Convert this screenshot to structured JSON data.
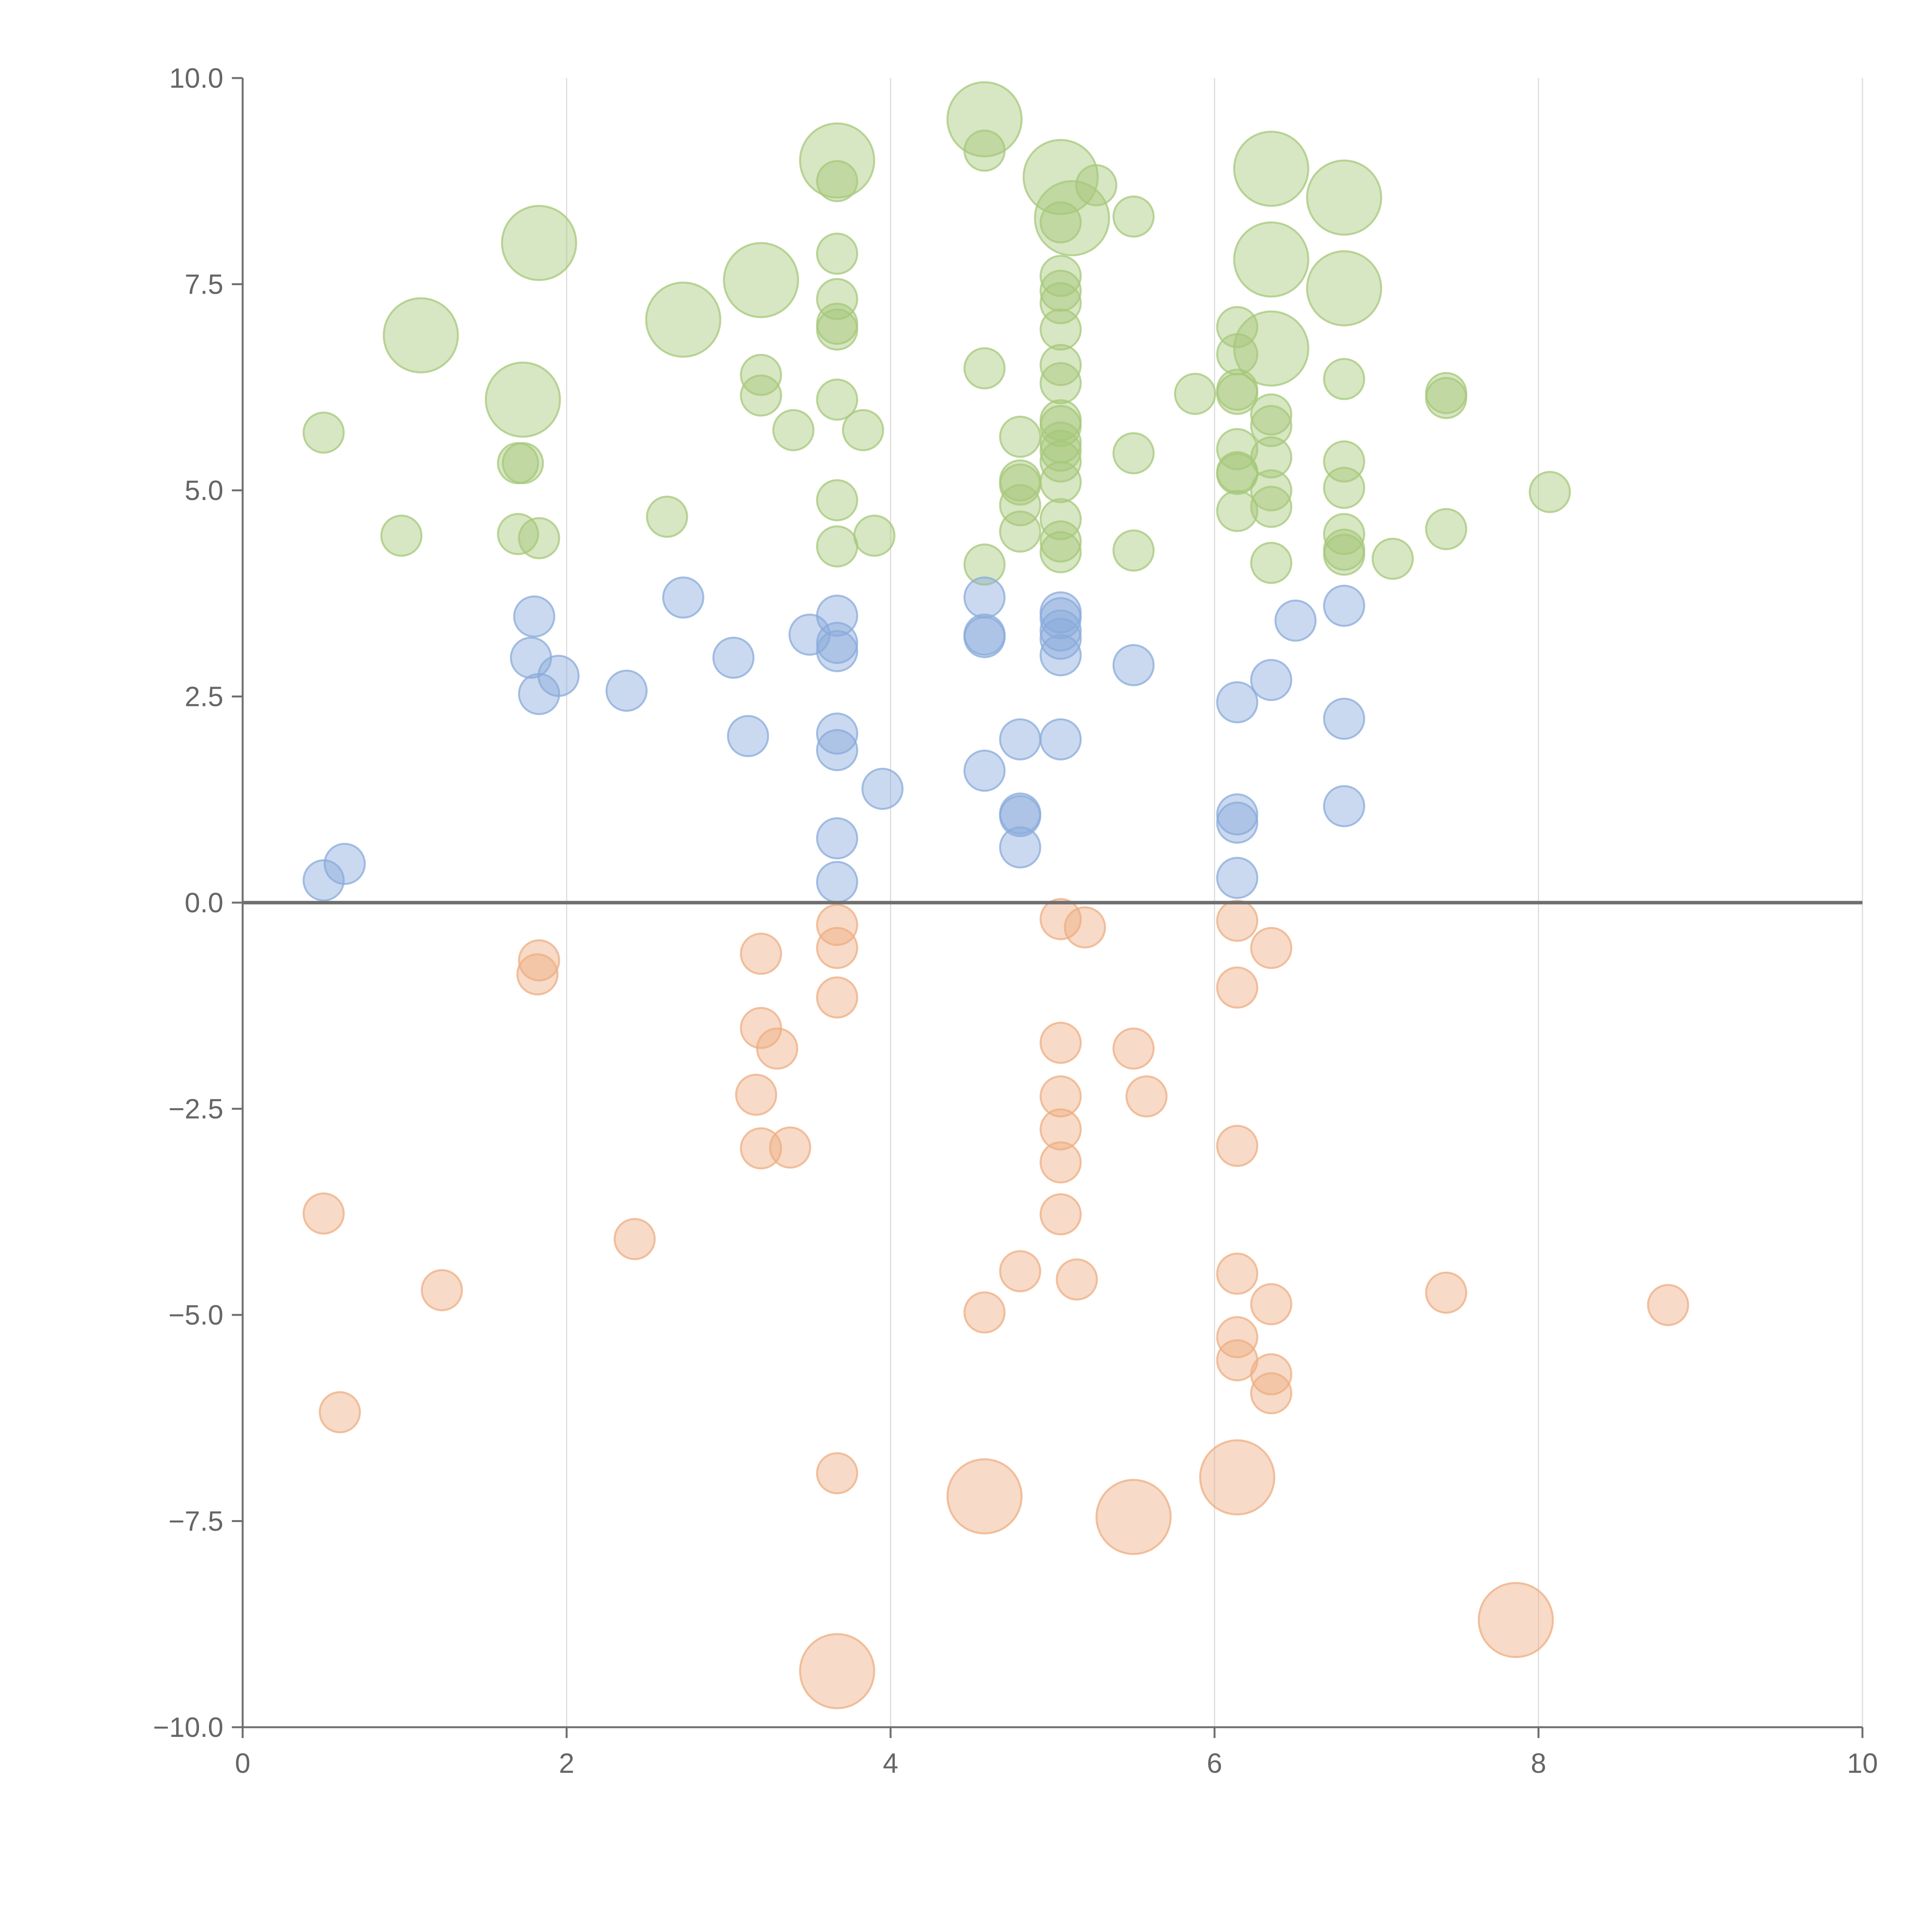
{
  "chart_data": {
    "type": "scatter",
    "title": "",
    "xlabel": "",
    "ylabel": "",
    "xlim": [
      0,
      10
    ],
    "ylim": [
      -10,
      10
    ],
    "x_ticks": [
      0,
      2,
      4,
      6,
      8,
      10
    ],
    "x_tick_labels": [
      "0",
      "2",
      "4",
      "6",
      "8",
      "10"
    ],
    "y_ticks": [
      -10,
      -7.5,
      -5,
      -2.5,
      0,
      2.5,
      5,
      7.5,
      10
    ],
    "y_tick_labels": [
      "−10.0",
      "−7.5",
      "−5.0",
      "−2.5",
      "0.0",
      "2.5",
      "5.0",
      "7.5",
      "10.0"
    ],
    "vertical_grid": true,
    "horizontal_grid": false,
    "zero_line": true,
    "legend": "none",
    "series": [
      {
        "color": "#a6c87a",
        "points": [
          [
            4.58,
            9.5,
            2
          ],
          [
            3.67,
            9.0,
            2
          ],
          [
            5.05,
            8.8,
            2
          ],
          [
            6.35,
            8.9,
            2
          ],
          [
            6.8,
            8.55,
            2
          ],
          [
            5.12,
            8.3,
            2
          ],
          [
            1.83,
            8.0,
            2
          ],
          [
            6.35,
            7.8,
            2
          ],
          [
            3.2,
            7.55,
            2
          ],
          [
            6.8,
            7.45,
            2
          ],
          [
            2.72,
            7.07,
            2
          ],
          [
            1.1,
            6.88,
            2
          ],
          [
            6.35,
            6.72,
            2
          ],
          [
            1.73,
            6.1,
            2
          ],
          [
            4.58,
            9.12,
            1
          ],
          [
            3.67,
            8.75,
            1
          ],
          [
            5.27,
            8.7,
            1
          ],
          [
            5.05,
            8.25,
            1
          ],
          [
            5.5,
            8.32,
            1
          ],
          [
            3.67,
            7.87,
            1
          ],
          [
            5.05,
            7.6,
            1
          ],
          [
            3.67,
            7.32,
            1
          ],
          [
            5.05,
            7.42,
            1
          ],
          [
            5.05,
            7.27,
            1
          ],
          [
            3.67,
            7.02,
            1
          ],
          [
            3.67,
            6.95,
            1
          ],
          [
            5.05,
            6.95,
            1
          ],
          [
            6.14,
            6.98,
            1
          ],
          [
            6.14,
            6.65,
            1
          ],
          [
            3.2,
            6.4,
            1
          ],
          [
            4.58,
            6.48,
            1
          ],
          [
            5.05,
            6.52,
            1
          ],
          [
            5.05,
            6.3,
            1
          ],
          [
            6.8,
            6.35,
            1
          ],
          [
            3.2,
            6.15,
            1
          ],
          [
            3.67,
            6.1,
            1
          ],
          [
            5.88,
            6.17,
            1
          ],
          [
            6.14,
            6.22,
            1
          ],
          [
            6.14,
            6.17,
            1
          ],
          [
            7.43,
            6.18,
            1
          ],
          [
            7.43,
            6.12,
            1
          ],
          [
            0.5,
            5.7,
            1
          ],
          [
            3.4,
            5.73,
            1
          ],
          [
            3.83,
            5.73,
            1
          ],
          [
            4.8,
            5.65,
            1
          ],
          [
            5.05,
            5.85,
            1
          ],
          [
            5.05,
            5.78,
            1
          ],
          [
            5.05,
            5.58,
            1
          ],
          [
            5.05,
            5.48,
            1
          ],
          [
            5.05,
            5.35,
            1
          ],
          [
            6.35,
            5.92,
            1
          ],
          [
            6.35,
            5.78,
            1
          ],
          [
            1.7,
            5.33,
            1
          ],
          [
            1.73,
            5.33,
            1
          ],
          [
            5.5,
            5.45,
            1
          ],
          [
            6.14,
            5.5,
            1
          ],
          [
            6.35,
            5.4,
            1
          ],
          [
            6.8,
            5.35,
            1
          ],
          [
            4.8,
            5.12,
            1
          ],
          [
            4.8,
            5.07,
            1
          ],
          [
            5.05,
            5.1,
            1
          ],
          [
            6.14,
            5.22,
            1
          ],
          [
            6.14,
            5.2,
            1
          ],
          [
            6.35,
            5.0,
            1
          ],
          [
            6.8,
            5.03,
            1
          ],
          [
            8.07,
            4.98,
            1
          ],
          [
            2.62,
            4.68,
            1
          ],
          [
            3.67,
            4.88,
            1
          ],
          [
            4.8,
            4.82,
            1
          ],
          [
            5.05,
            4.65,
            1
          ],
          [
            6.14,
            4.75,
            1
          ],
          [
            6.35,
            4.8,
            1
          ],
          [
            0.98,
            4.45,
            1
          ],
          [
            1.7,
            4.47,
            1
          ],
          [
            1.83,
            4.42,
            1
          ],
          [
            3.67,
            4.32,
            1
          ],
          [
            3.9,
            4.45,
            1
          ],
          [
            4.8,
            4.5,
            1
          ],
          [
            5.05,
            4.38,
            1
          ],
          [
            5.05,
            4.25,
            1
          ],
          [
            5.5,
            4.27,
            1
          ],
          [
            6.8,
            4.47,
            1
          ],
          [
            6.8,
            4.28,
            1
          ],
          [
            6.8,
            4.22,
            1
          ],
          [
            7.43,
            4.53,
            1
          ],
          [
            4.58,
            4.1,
            1
          ],
          [
            6.35,
            4.12,
            1
          ],
          [
            7.1,
            4.17,
            1
          ]
        ]
      },
      {
        "color": "#8aabdb",
        "points": [
          [
            2.72,
            3.7,
            1
          ],
          [
            4.58,
            3.7,
            1
          ],
          [
            6.8,
            3.6,
            1
          ],
          [
            1.8,
            3.47,
            1
          ],
          [
            3.67,
            3.48,
            1
          ],
          [
            5.05,
            3.52,
            1
          ],
          [
            5.05,
            3.45,
            1
          ],
          [
            6.5,
            3.42,
            1
          ],
          [
            3.5,
            3.25,
            1
          ],
          [
            4.58,
            3.25,
            1
          ],
          [
            4.58,
            3.22,
            1
          ],
          [
            5.05,
            3.3,
            1
          ],
          [
            5.05,
            3.2,
            1
          ],
          [
            3.67,
            3.15,
            1
          ],
          [
            3.67,
            3.05,
            1
          ],
          [
            1.78,
            2.97,
            1
          ],
          [
            3.03,
            2.97,
            1
          ],
          [
            5.05,
            3.0,
            1
          ],
          [
            5.5,
            2.88,
            1
          ],
          [
            1.95,
            2.75,
            1
          ],
          [
            6.35,
            2.7,
            1
          ],
          [
            1.83,
            2.53,
            1
          ],
          [
            2.37,
            2.57,
            1
          ],
          [
            6.14,
            2.43,
            1
          ],
          [
            6.8,
            2.23,
            1
          ],
          [
            3.12,
            2.02,
            1
          ],
          [
            3.67,
            2.05,
            1
          ],
          [
            4.8,
            1.98,
            1
          ],
          [
            5.05,
            1.98,
            1
          ],
          [
            3.67,
            1.85,
            1
          ],
          [
            4.58,
            1.6,
            1
          ],
          [
            3.95,
            1.38,
            1
          ],
          [
            6.8,
            1.17,
            1
          ],
          [
            4.8,
            1.08,
            1
          ],
          [
            4.8,
            1.05,
            1
          ],
          [
            6.14,
            1.07,
            1
          ],
          [
            6.14,
            0.97,
            1
          ],
          [
            3.67,
            0.78,
            1
          ],
          [
            4.8,
            0.67,
            1
          ],
          [
            0.63,
            0.47,
            1
          ],
          [
            0.5,
            0.27,
            1
          ],
          [
            3.67,
            0.25,
            1
          ],
          [
            6.14,
            0.3,
            1
          ]
        ]
      },
      {
        "color": "#eeae82",
        "points": [
          [
            3.67,
            -0.27,
            1
          ],
          [
            5.05,
            -0.2,
            1
          ],
          [
            5.2,
            -0.3,
            1
          ],
          [
            6.14,
            -0.22,
            1
          ],
          [
            3.67,
            -0.55,
            1
          ],
          [
            3.2,
            -0.62,
            1
          ],
          [
            6.35,
            -0.55,
            1
          ],
          [
            1.83,
            -0.7,
            1
          ],
          [
            1.82,
            -0.87,
            1
          ],
          [
            6.14,
            -1.03,
            1
          ],
          [
            3.67,
            -1.15,
            1
          ],
          [
            3.2,
            -1.52,
            1
          ],
          [
            3.3,
            -1.77,
            1
          ],
          [
            5.05,
            -1.7,
            1
          ],
          [
            5.5,
            -1.77,
            1
          ],
          [
            3.17,
            -2.33,
            1
          ],
          [
            5.05,
            -2.35,
            1
          ],
          [
            5.58,
            -2.35,
            1
          ],
          [
            5.05,
            -2.75,
            1
          ],
          [
            3.2,
            -2.98,
            1
          ],
          [
            3.38,
            -2.97,
            1
          ],
          [
            6.14,
            -2.95,
            1
          ],
          [
            5.05,
            -3.15,
            1
          ],
          [
            0.5,
            -3.77,
            1
          ],
          [
            5.05,
            -3.78,
            1
          ],
          [
            2.42,
            -4.08,
            1
          ],
          [
            4.8,
            -4.47,
            1
          ],
          [
            5.15,
            -4.57,
            1
          ],
          [
            6.14,
            -4.5,
            1
          ],
          [
            1.23,
            -4.7,
            1
          ],
          [
            7.43,
            -4.73,
            1
          ],
          [
            6.35,
            -4.87,
            1
          ],
          [
            8.8,
            -4.88,
            1
          ],
          [
            4.58,
            -4.97,
            1
          ],
          [
            6.14,
            -5.27,
            1
          ],
          [
            6.14,
            -5.55,
            1
          ],
          [
            6.35,
            -5.72,
            1
          ],
          [
            6.35,
            -5.95,
            1
          ],
          [
            0.6,
            -6.18,
            1
          ],
          [
            3.67,
            -6.92,
            1
          ],
          [
            6.14,
            -6.97,
            2
          ],
          [
            4.58,
            -7.2,
            2
          ],
          [
            5.5,
            -7.45,
            2
          ],
          [
            7.86,
            -8.7,
            2
          ],
          [
            3.67,
            -9.32,
            2
          ]
        ]
      }
    ]
  }
}
